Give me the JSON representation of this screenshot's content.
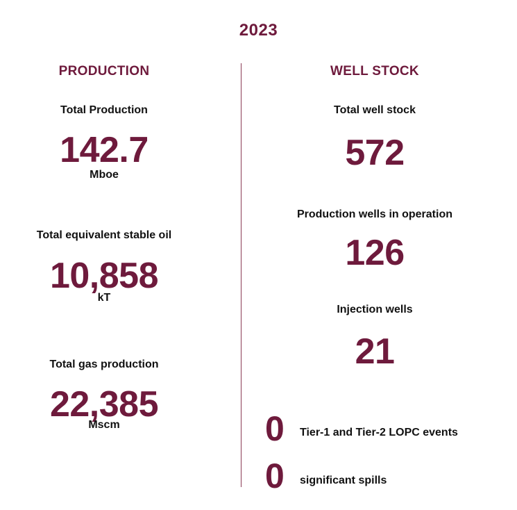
{
  "year": "2023",
  "production": {
    "heading": "PRODUCTION",
    "metrics": [
      {
        "label": "Total Production",
        "value": "142.7",
        "unit": "Mboe"
      },
      {
        "label": "Total equivalent stable oil",
        "value": "10,858",
        "unit": "kT"
      },
      {
        "label": "Total gas production",
        "value": "22,385",
        "unit": "Mscm"
      }
    ]
  },
  "well_stock": {
    "heading": "WELL STOCK",
    "metrics": [
      {
        "label": "Total well stock",
        "value": "572"
      },
      {
        "label": "Production wells in operation",
        "value": "126"
      },
      {
        "label": "Injection wells",
        "value": "21"
      }
    ],
    "events": [
      {
        "value": "0",
        "label": "Tier-1 and Tier-2 LOPC events"
      },
      {
        "value": "0",
        "label": "significant spills"
      }
    ]
  },
  "colors": {
    "accent": "#6e1a3c",
    "divider": "#8a3a55"
  }
}
